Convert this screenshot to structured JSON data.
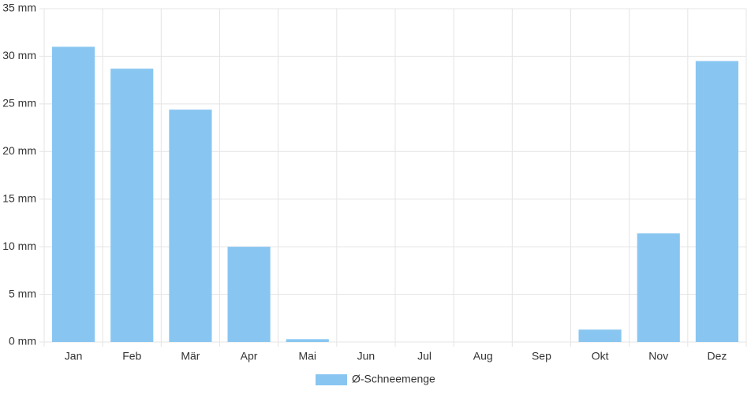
{
  "chart_data": {
    "type": "bar",
    "categories": [
      "Jan",
      "Feb",
      "Mär",
      "Apr",
      "Mai",
      "Jun",
      "Jul",
      "Aug",
      "Sep",
      "Okt",
      "Nov",
      "Dez"
    ],
    "series": [
      {
        "name": "Ø-Schneemenge",
        "color": "#88c6f1",
        "values": [
          31.0,
          28.7,
          24.4,
          10.0,
          0.3,
          0,
          0,
          0,
          0,
          1.3,
          11.4,
          29.5
        ]
      }
    ],
    "ylim": [
      0,
      35
    ],
    "yticks": [
      {
        "value": 0,
        "label": "0 mm"
      },
      {
        "value": 5,
        "label": "5 mm"
      },
      {
        "value": 10,
        "label": "10 mm"
      },
      {
        "value": 15,
        "label": "15 mm"
      },
      {
        "value": 20,
        "label": "20 mm"
      },
      {
        "value": 25,
        "label": "25 mm"
      },
      {
        "value": 30,
        "label": "30 mm"
      },
      {
        "value": 35,
        "label": "35 mm"
      }
    ],
    "grid": true
  }
}
